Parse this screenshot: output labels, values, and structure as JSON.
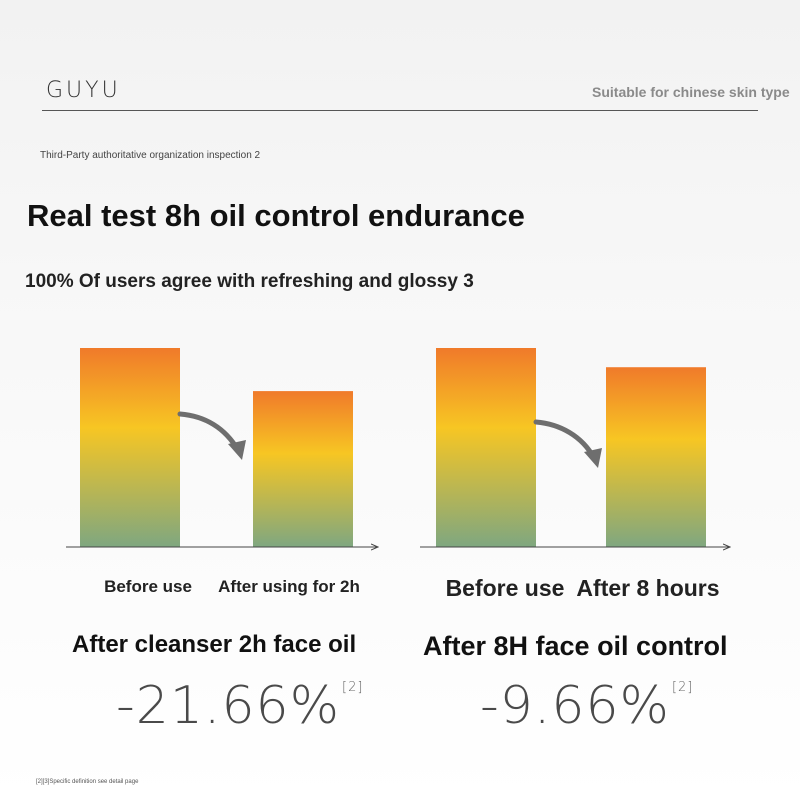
{
  "header": {
    "brand": "GUYU",
    "tagline": "Suitable for chinese skin type"
  },
  "inspection_note": "Third-Party authoritative organization inspection 2",
  "headline": "Real test 8h oil control endurance",
  "subheadline": "100% Of users agree with refreshing and glossy 3",
  "colors": {
    "bar_top": "#f07a2a",
    "bar_mid": "#f7c623",
    "bar_bottom": "#7fa780",
    "arrow": "#6e6e6e"
  },
  "chart_data": [
    {
      "type": "bar",
      "title": "After cleanser 2h face oil",
      "categories": [
        "Before use",
        "After using for 2h"
      ],
      "values": [
        100,
        78.34
      ],
      "change_label": "-21.66%",
      "ref": "[2]"
    },
    {
      "type": "bar",
      "title": "After 8H face oil control",
      "categories": [
        "Before use",
        "After 8 hours"
      ],
      "values": [
        100,
        90.34
      ],
      "change_label": "-9.66%",
      "ref": "[2]"
    }
  ],
  "footnote": "[2][3]Specific definition see detail page"
}
